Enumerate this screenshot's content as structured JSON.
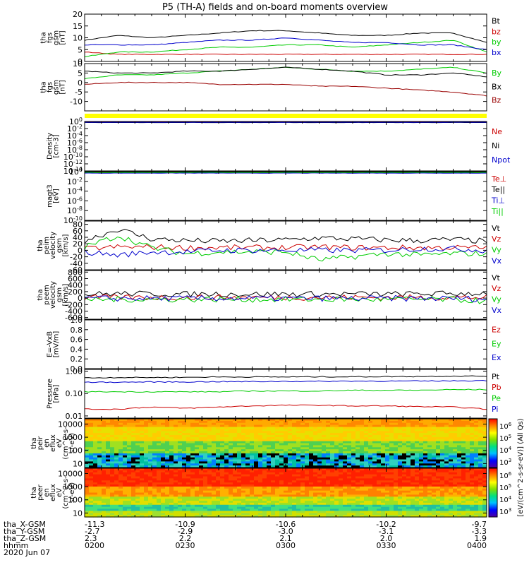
{
  "title": "P5 (TH-A) fields and on-board moments overview",
  "chart_data": [
    {
      "id": "fgs_mag",
      "type": "line",
      "ylabel": [
        "tha",
        "fgs",
        "gsm",
        "[nT]"
      ],
      "ylim": [
        0,
        20
      ],
      "yticks": [
        "20",
        "15",
        "10",
        "5",
        "0"
      ],
      "series": [
        {
          "name": "Bt",
          "color": "#000000",
          "values": [
            9,
            11,
            10,
            11,
            12,
            13,
            13,
            12,
            11,
            11,
            12,
            12,
            8
          ]
        },
        {
          "name": "bz",
          "color": "#cc0000",
          "values": [
            4,
            3,
            3,
            3,
            3,
            3,
            3,
            3,
            3,
            3,
            3,
            3,
            3
          ]
        },
        {
          "name": "by",
          "color": "#00cc00",
          "values": [
            2,
            4,
            4,
            5,
            6,
            6,
            7,
            7,
            6,
            7,
            8,
            9,
            4
          ]
        },
        {
          "name": "bx",
          "color": "#0000cc",
          "values": [
            7,
            7,
            7,
            8,
            9,
            9,
            10,
            9,
            8,
            8,
            7,
            7,
            5
          ]
        }
      ]
    },
    {
      "id": "fgs_comp",
      "type": "line",
      "ylabel": [
        "tha",
        "fgs",
        "gsm",
        "[nT]"
      ],
      "ylim": [
        -15,
        10
      ],
      "yticks": [
        "10",
        "5",
        "0",
        "-5",
        "-10"
      ],
      "series": [
        {
          "name": "By",
          "color": "#00cc00",
          "values": [
            2,
            4,
            4,
            5,
            6,
            7,
            8,
            7,
            6,
            6,
            7,
            8,
            5
          ]
        },
        {
          "name": "Bx",
          "color": "#000000",
          "values": [
            6,
            5,
            5,
            6,
            6,
            7,
            8,
            7,
            6,
            4,
            4,
            5,
            3
          ]
        },
        {
          "name": "Bz",
          "color": "#990000",
          "values": [
            -1,
            0,
            0,
            0,
            -1,
            -1,
            -1,
            -2,
            -2,
            -3,
            -4,
            -5,
            -7
          ]
        }
      ]
    },
    {
      "id": "density",
      "type": "line",
      "ylabel": [
        "Density",
        "[cm-3]"
      ],
      "scale": "log",
      "ylim": [
        1e-14,
        1
      ],
      "yticks": [
        "10^0",
        "10^-2",
        "10^-4",
        "10^-6",
        "10^-8",
        "10^-10",
        "10^-12",
        "10^-14"
      ],
      "series": [
        {
          "name": "Ne",
          "color": "#cc0000",
          "values": [
            0.7,
            0.7,
            0.7,
            0.7,
            0.7,
            0.7,
            0.7,
            0.7,
            0.7,
            0.7,
            0.7,
            0.7,
            0.7
          ]
        },
        {
          "name": "Ni",
          "color": "#000000",
          "values": [
            0.5,
            0.5,
            0.5,
            0.5,
            0.5,
            0.5,
            0.5,
            0.5,
            0.5,
            0.5,
            0.5,
            0.5,
            0.5
          ]
        },
        {
          "name": "Npot",
          "color": "#0000cc",
          "values": [
            0.6,
            0.6,
            0.6,
            0.6,
            0.6,
            0.6,
            0.6,
            0.6,
            0.6,
            0.6,
            0.6,
            0.6,
            0.6
          ]
        }
      ]
    },
    {
      "id": "temperature",
      "type": "line",
      "ylabel": [
        "magt3",
        "[eV]"
      ],
      "scale": "log",
      "ylim": [
        1e-10,
        1
      ],
      "yticks": [
        "10^0",
        "10^-2",
        "10^-4",
        "10^-6",
        "10^-8",
        "10^-10"
      ],
      "series": [
        {
          "name": "Te⊥",
          "color": "#cc0000",
          "values": [
            0.8,
            0.8,
            0.8,
            0.8,
            0.8,
            0.8,
            0.8,
            0.8,
            0.8,
            0.8,
            0.8,
            0.8,
            0.8
          ]
        },
        {
          "name": "Te||",
          "color": "#000000",
          "values": [
            0.6,
            0.6,
            0.6,
            0.6,
            0.6,
            0.6,
            0.6,
            0.6,
            0.6,
            0.6,
            0.6,
            0.6,
            0.6
          ]
        },
        {
          "name": "Ti⊥",
          "color": "#0000cc",
          "values": [
            0.5,
            0.5,
            0.5,
            0.5,
            0.5,
            0.5,
            0.5,
            0.5,
            0.5,
            0.5,
            0.5,
            0.5,
            0.5
          ]
        },
        {
          "name": "Ti||",
          "color": "#00cc00",
          "values": [
            0.7,
            0.7,
            0.7,
            0.7,
            0.7,
            0.7,
            0.7,
            0.7,
            0.7,
            0.7,
            0.7,
            0.7,
            0.7
          ]
        }
      ]
    },
    {
      "id": "peim_velocity",
      "type": "line",
      "ylabel": [
        "tha",
        "peim",
        "velocity",
        "gsm",
        "[km/s]"
      ],
      "ylim": [
        -60,
        90
      ],
      "yticks": [
        "80",
        "60",
        "40",
        "20",
        "0",
        "-20",
        "-40",
        "-60"
      ],
      "series": [
        {
          "name": "Vt",
          "color": "#000000",
          "values": [
            30,
            65,
            35,
            30,
            28,
            30,
            32,
            38,
            35,
            32,
            30,
            33,
            28
          ]
        },
        {
          "name": "Vz",
          "color": "#cc0000",
          "values": [
            5,
            10,
            10,
            8,
            8,
            8,
            8,
            10,
            8,
            8,
            8,
            8,
            8
          ]
        },
        {
          "name": "Vy",
          "color": "#00cc00",
          "values": [
            10,
            45,
            8,
            -10,
            -5,
            -5,
            -5,
            -30,
            -20,
            -10,
            -15,
            -10,
            -10
          ]
        },
        {
          "name": "Vx",
          "color": "#0000cc",
          "values": [
            -5,
            -15,
            -5,
            -5,
            0,
            0,
            0,
            0,
            0,
            0,
            5,
            5,
            0
          ]
        }
      ]
    },
    {
      "id": "peem_velocity",
      "type": "line",
      "ylabel": [
        "tha",
        "peem",
        "velocity",
        "gsm",
        "[km/s]"
      ],
      "ylim": [
        -650,
        850
      ],
      "yticks": [
        "800",
        "600",
        "400",
        "200",
        "0",
        "-200",
        "-400",
        "-600"
      ],
      "series": [
        {
          "name": "Vt",
          "color": "#000000",
          "values": [
            120,
            140,
            130,
            120,
            130,
            120,
            125,
            120,
            130,
            120,
            130,
            140,
            150
          ]
        },
        {
          "name": "Vz",
          "color": "#cc0000",
          "values": [
            20,
            20,
            20,
            20,
            20,
            20,
            20,
            20,
            20,
            20,
            20,
            20,
            20
          ]
        },
        {
          "name": "Vy",
          "color": "#00cc00",
          "values": [
            -40,
            -40,
            -40,
            -40,
            -40,
            -40,
            -40,
            -40,
            -40,
            -40,
            -40,
            -40,
            -100
          ]
        },
        {
          "name": "Vx",
          "color": "#0000cc",
          "values": [
            -10,
            -10,
            -10,
            -10,
            -10,
            -10,
            -10,
            -10,
            -10,
            -10,
            -10,
            -10,
            -30
          ]
        }
      ]
    },
    {
      "id": "efield",
      "type": "line",
      "ylabel": [
        "E=-VxB",
        "[mV/m]"
      ],
      "ylim": [
        0,
        1
      ],
      "yticks": [
        "1.0",
        "0.8",
        "0.6",
        "0.4",
        "0.2",
        "0.0"
      ],
      "series": [
        {
          "name": "Ez",
          "color": "#cc0000",
          "values": []
        },
        {
          "name": "Ey",
          "color": "#00cc00",
          "values": []
        },
        {
          "name": "Ex",
          "color": "#0000cc",
          "values": []
        }
      ]
    },
    {
      "id": "pressure",
      "type": "line",
      "ylabel": [
        "Pressure",
        "[nPa]"
      ],
      "scale": "log",
      "ylim": [
        0.008,
        1.2
      ],
      "yticks": [
        "1.00",
        "0.10",
        "0.01"
      ],
      "series": [
        {
          "name": "Pt",
          "color": "#000000",
          "values": [
            0.5,
            0.52,
            0.52,
            0.53,
            0.55,
            0.55,
            0.55,
            0.56,
            0.56,
            0.57,
            0.58,
            0.6,
            0.6
          ]
        },
        {
          "name": "Pb",
          "color": "#cc0000",
          "values": [
            0.02,
            0.02,
            0.025,
            0.022,
            0.025,
            0.028,
            0.03,
            0.03,
            0.028,
            0.028,
            0.026,
            0.025,
            0.02
          ]
        },
        {
          "name": "Pe",
          "color": "#00cc00",
          "values": [
            0.12,
            0.12,
            0.12,
            0.12,
            0.12,
            0.13,
            0.13,
            0.13,
            0.14,
            0.14,
            0.14,
            0.15,
            0.15
          ]
        },
        {
          "name": "Pi",
          "color": "#0000cc",
          "values": [
            0.32,
            0.32,
            0.33,
            0.33,
            0.34,
            0.34,
            0.35,
            0.35,
            0.36,
            0.36,
            0.36,
            0.37,
            0.38
          ]
        }
      ]
    },
    {
      "id": "peir_spectrogram",
      "type": "heatmap",
      "ylabel": [
        "tha",
        "peir",
        "en",
        "eflux",
        "eV",
        "(cm^2-s-",
        "sr-eV)"
      ],
      "scale": "log",
      "ylim": [
        5,
        25000
      ],
      "yticks": [
        "10000",
        "1000",
        "100",
        "10"
      ]
    },
    {
      "id": "peer_spectrogram",
      "type": "heatmap",
      "ylabel": [
        "tha",
        "peer",
        "en",
        "eflux",
        "eV",
        "(cm^2-s-",
        "sr-eV)"
      ],
      "scale": "log",
      "ylim": [
        5,
        25000
      ],
      "yticks": [
        "10000",
        "1000",
        "100",
        "10"
      ]
    }
  ],
  "colorbar": {
    "label": "[eV/(cm^2-s-sr-eV)] (All Qs)",
    "ticks": [
      "10^6",
      "10^5",
      "10^4",
      "10^3"
    ]
  },
  "x_axis": {
    "row_labels": [
      "tha_X-GSM",
      "tha_Y-GSM",
      "tha_Z-GSM",
      "hhmm",
      "2020 Jun 07"
    ],
    "ticks": [
      {
        "x": "-11.3",
        "y": "-2.7",
        "z": "2.3",
        "hhmm": "0200"
      },
      {
        "x": "-10.9",
        "y": "-2.9",
        "z": "2.2",
        "hhmm": "0230"
      },
      {
        "x": "-10.6",
        "y": "-3.0",
        "z": "2.1",
        "hhmm": "0300"
      },
      {
        "x": "-10.2",
        "y": "-3.1",
        "z": "2.0",
        "hhmm": "0330"
      },
      {
        "x": "-9.7",
        "y": "-3.3",
        "z": "1.9",
        "hhmm": "0400"
      }
    ]
  },
  "colors": {
    "flag_bar": "#ffff00"
  }
}
